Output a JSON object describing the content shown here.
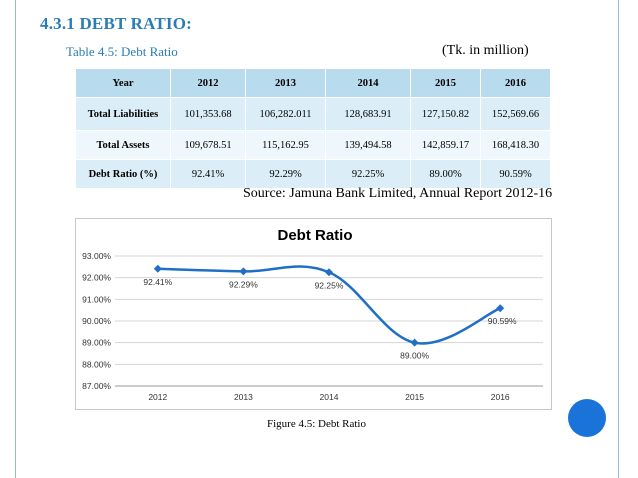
{
  "heading": "4.3.1 DEBT RATIO:",
  "table_caption": "Table 4.5: Debt Ratio",
  "unit_note": "(Tk. in million)",
  "table": {
    "header": [
      "Year",
      "2012",
      "2013",
      "2014",
      "2015",
      "2016"
    ],
    "rows": [
      [
        "Total Liabilities",
        "101,353.68",
        "106,282.011",
        "128,683.91",
        "127,150.82",
        "152,569.66"
      ],
      [
        "Total Assets",
        "109,678.51",
        "115,162.95",
        "139,494.58",
        "142,859.17",
        "168,418.30"
      ],
      [
        "Debt Ratio (%)",
        "92.41%",
        "92.29%",
        "92.25%",
        "89.00%",
        "90.59%"
      ]
    ]
  },
  "source": "Source: Jamuna Bank Limited, Annual Report 2012-16",
  "figure_caption": "Figure 4.5: Debt Ratio",
  "chart_data": {
    "type": "line",
    "title": "Debt Ratio",
    "categories": [
      "2012",
      "2013",
      "2014",
      "2015",
      "2016"
    ],
    "values": [
      92.41,
      92.29,
      92.25,
      89.0,
      90.59
    ],
    "data_labels": [
      "92.41%",
      "92.29%",
      "92.25%",
      "89.00%",
      "90.59%"
    ],
    "y_ticks": [
      "87.00%",
      "88.00%",
      "89.00%",
      "90.00%",
      "91.00%",
      "92.00%",
      "93.00%"
    ],
    "ylim": [
      87,
      93
    ],
    "grid": true,
    "legend": "none",
    "line_color": "#1f6fc6",
    "smooth": true
  }
}
